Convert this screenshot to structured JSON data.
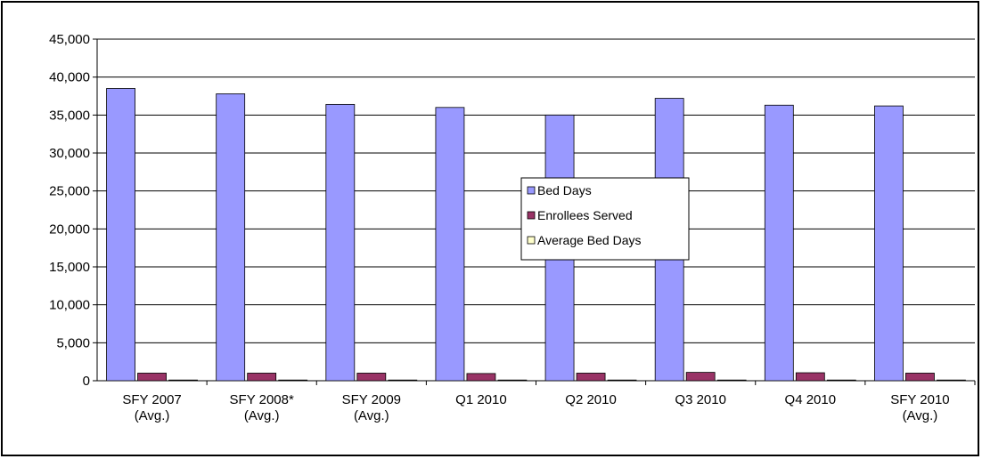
{
  "chart_data": {
    "type": "bar",
    "title": "",
    "xlabel": "",
    "ylabel": "",
    "ylim": [
      0,
      45000
    ],
    "yticks": [
      0,
      5000,
      10000,
      15000,
      20000,
      25000,
      30000,
      35000,
      40000,
      45000
    ],
    "ytick_labels": [
      "0",
      "5,000",
      "10,000",
      "15,000",
      "20,000",
      "25,000",
      "30,000",
      "35,000",
      "40,000",
      "45,000"
    ],
    "grid": true,
    "legend_position": "center-right",
    "categories": [
      [
        "SFY 2007",
        "(Avg.)"
      ],
      [
        "SFY 2008*",
        "(Avg.)"
      ],
      [
        "SFY 2009",
        "(Avg.)"
      ],
      [
        "Q1 2010"
      ],
      [
        "Q2 2010"
      ],
      [
        "Q3 2010"
      ],
      [
        "Q4 2010"
      ],
      [
        "SFY 2010",
        "(Avg.)"
      ]
    ],
    "series": [
      {
        "name": "Bed Days",
        "color": "#9999ff",
        "values": [
          38500,
          37800,
          36400,
          36000,
          35000,
          37200,
          36300,
          36200
        ]
      },
      {
        "name": "Enrollees Served",
        "color": "#993366",
        "values": [
          1000,
          1000,
          1000,
          950,
          1000,
          1100,
          1050,
          1000
        ]
      },
      {
        "name": "Average Bed Days",
        "color": "#ffffcc",
        "values": [
          37,
          37,
          36,
          37,
          35,
          34,
          35,
          36
        ]
      }
    ]
  }
}
